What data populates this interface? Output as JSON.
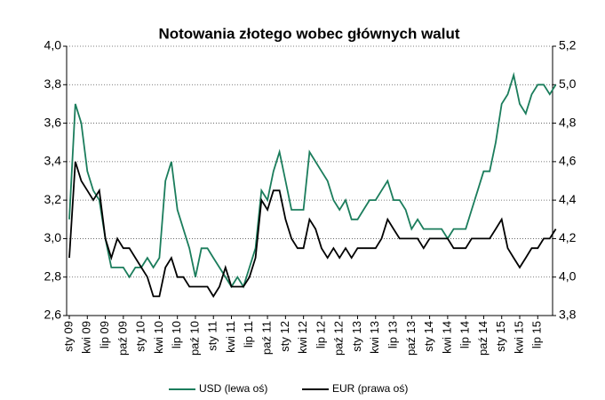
{
  "chart_data": {
    "type": "line",
    "title": "Notowania złotego wobec głównych walut",
    "categories": [
      "sty 09",
      null,
      null,
      "kwi 09",
      null,
      null,
      "lip 09",
      null,
      null,
      "paź 09",
      null,
      null,
      "sty 10",
      null,
      null,
      "kwi 10",
      null,
      null,
      "lip 10",
      null,
      null,
      "paź 10",
      null,
      null,
      "sty 11",
      null,
      null,
      "kwi 11",
      null,
      null,
      "lip 11",
      null,
      null,
      "paź 11",
      null,
      null,
      "sty 12",
      null,
      null,
      "kwi 12",
      null,
      null,
      "lip 12",
      null,
      null,
      "paź 12",
      null,
      null,
      "sty 13",
      null,
      null,
      "kwi 13",
      null,
      null,
      "lip 13",
      null,
      null,
      "paź 13",
      null,
      null,
      "sty 14",
      null,
      null,
      "kwi 14",
      null,
      null,
      "lip 14",
      null,
      null,
      "paź 14",
      null,
      null,
      "sty 15",
      null,
      null,
      "kwi 15",
      null,
      null,
      "lip 15",
      null,
      null,
      null
    ],
    "series": [
      {
        "name": "USD (lewa oś)",
        "color": "#1b7d5c",
        "values": [
          3.1,
          3.7,
          3.6,
          3.35,
          3.25,
          3.2,
          3.0,
          2.85,
          2.85,
          2.85,
          2.8,
          2.85,
          2.85,
          2.9,
          2.85,
          2.9,
          3.3,
          3.4,
          3.15,
          3.05,
          2.95,
          2.8,
          2.95,
          2.95,
          2.9,
          2.85,
          2.8,
          2.75,
          2.8,
          2.75,
          2.85,
          2.95,
          3.25,
          3.2,
          3.35,
          3.45,
          3.3,
          3.15,
          3.15,
          3.15,
          3.45,
          3.4,
          3.35,
          3.3,
          3.2,
          3.15,
          3.2,
          3.1,
          3.1,
          3.15,
          3.2,
          3.2,
          3.25,
          3.3,
          3.2,
          3.2,
          3.15,
          3.05,
          3.1,
          3.05,
          3.05,
          3.05,
          3.05,
          3.0,
          3.05,
          3.05,
          3.05,
          3.15,
          3.25,
          3.35,
          3.35,
          3.5,
          3.7,
          3.75,
          3.85,
          3.7,
          3.65,
          3.75,
          3.8,
          3.8,
          3.75,
          3.8
        ]
      },
      {
        "name": "EUR (prawa  oś)",
        "color": "#000000",
        "axis": "y2",
        "values": [
          4.1,
          4.6,
          4.5,
          4.45,
          4.4,
          4.45,
          4.2,
          4.1,
          4.2,
          4.15,
          4.15,
          4.1,
          4.05,
          4.0,
          3.9,
          3.9,
          4.05,
          4.1,
          4.0,
          4.0,
          3.95,
          3.95,
          3.95,
          3.95,
          3.9,
          3.95,
          4.05,
          3.95,
          3.95,
          3.95,
          4.0,
          4.1,
          4.4,
          4.35,
          4.45,
          4.45,
          4.3,
          4.2,
          4.15,
          4.15,
          4.3,
          4.25,
          4.15,
          4.1,
          4.15,
          4.1,
          4.15,
          4.1,
          4.15,
          4.15,
          4.15,
          4.15,
          4.2,
          4.3,
          4.25,
          4.2,
          4.2,
          4.2,
          4.2,
          4.15,
          4.2,
          4.2,
          4.2,
          4.2,
          4.15,
          4.15,
          4.15,
          4.2,
          4.2,
          4.2,
          4.2,
          4.25,
          4.3,
          4.15,
          4.1,
          4.05,
          4.1,
          4.15,
          4.15,
          4.2,
          4.2,
          4.25
        ]
      }
    ],
    "ylim": [
      2.6,
      4.0
    ],
    "yticks": [
      {
        "value": 2.6,
        "label": "2,6"
      },
      {
        "value": 2.8,
        "label": "2,8"
      },
      {
        "value": 3.0,
        "label": "3,0"
      },
      {
        "value": 3.2,
        "label": "3,2"
      },
      {
        "value": 3.4,
        "label": "3,4"
      },
      {
        "value": 3.6,
        "label": "3,6"
      },
      {
        "value": 3.8,
        "label": "3,8"
      },
      {
        "value": 4.0,
        "label": "4,0"
      }
    ],
    "y2lim": [
      3.8,
      5.2
    ],
    "y2ticks": [
      {
        "value": 3.8,
        "label": "3,8"
      },
      {
        "value": 4.0,
        "label": "4,0"
      },
      {
        "value": 4.2,
        "label": "4,2"
      },
      {
        "value": 4.4,
        "label": "4,4"
      },
      {
        "value": 4.6,
        "label": "4,6"
      },
      {
        "value": 4.8,
        "label": "4,8"
      },
      {
        "value": 5.0,
        "label": "5,0"
      },
      {
        "value": 5.2,
        "label": "5,2"
      }
    ],
    "grid": true,
    "legend": "bottom"
  }
}
